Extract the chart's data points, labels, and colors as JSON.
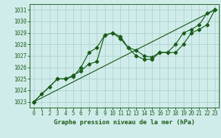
{
  "title": "Graphe pression niveau de la mer (hPa)",
  "bg_color": "#d0ecea",
  "grid_color": "#b0d4d0",
  "line_color": "#1a5c1a",
  "xlim": [
    -0.5,
    23.5
  ],
  "ylim": [
    1022.5,
    1031.5
  ],
  "yticks": [
    1023,
    1024,
    1025,
    1026,
    1027,
    1028,
    1029,
    1030,
    1031
  ],
  "xticks": [
    0,
    1,
    2,
    3,
    4,
    5,
    6,
    7,
    8,
    9,
    10,
    11,
    12,
    13,
    14,
    15,
    16,
    17,
    18,
    19,
    20,
    21,
    22,
    23
  ],
  "series1_x": [
    0,
    1,
    2,
    3,
    4,
    5,
    6,
    7,
    8,
    9,
    10,
    11,
    12,
    13,
    14,
    15,
    16,
    17,
    18,
    19,
    20,
    21,
    22,
    23
  ],
  "series1_y": [
    1023.0,
    1023.7,
    1024.3,
    1025.0,
    1025.0,
    1025.2,
    1026.0,
    1027.3,
    1027.7,
    1028.8,
    1029.0,
    1028.7,
    1027.7,
    1027.5,
    1027.0,
    1026.9,
    1027.3,
    1027.3,
    1028.0,
    1029.0,
    1029.3,
    1029.7,
    1030.7,
    1031.0
  ],
  "series2_x": [
    0,
    3,
    4,
    5,
    6,
    7,
    8,
    9,
    10,
    11,
    12,
    13,
    14,
    15,
    16,
    17,
    18,
    19,
    20,
    21,
    22,
    23
  ],
  "series2_y": [
    1023.0,
    1025.0,
    1025.0,
    1025.3,
    1025.7,
    1026.3,
    1026.5,
    1028.8,
    1029.0,
    1028.5,
    1027.7,
    1027.0,
    1026.7,
    1026.7,
    1027.3,
    1027.3,
    1027.3,
    1028.0,
    1029.0,
    1029.3,
    1029.7,
    1031.0
  ],
  "series3_x": [
    0,
    23
  ],
  "series3_y": [
    1023.0,
    1031.0
  ]
}
